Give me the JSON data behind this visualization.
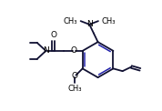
{
  "bg_color": "#ffffff",
  "line_color": "#111133",
  "bond_color": "#2222aa",
  "text_color": "#000000",
  "line_width": 1.3,
  "font_size": 6.5,
  "figsize": [
    1.78,
    1.22
  ],
  "dpi": 100,
  "xlim": [
    0,
    9
  ],
  "ylim": [
    0,
    6.5
  ]
}
